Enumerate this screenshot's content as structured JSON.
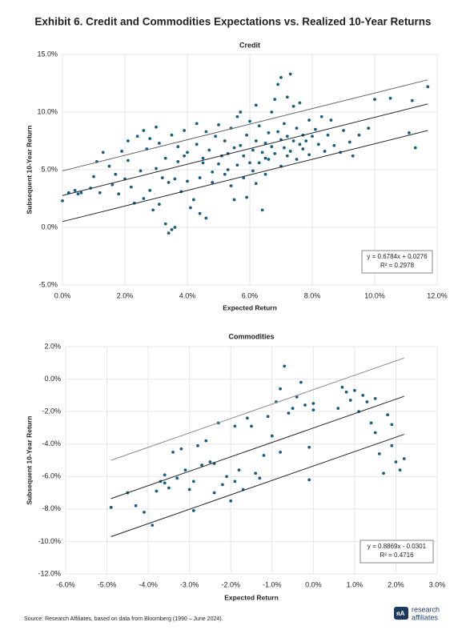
{
  "title": "Exhibit 6. Credit and Commodities Expectations vs. Realized 10-Year Returns",
  "source": "Source: Research Affiliates, based on data from Bloomberg (1990 – June 2024).",
  "logo": {
    "line1": "research",
    "line2": "affiliates"
  },
  "chart_data": [
    {
      "type": "scatter",
      "title": "Credit",
      "x_label": "Expected Return",
      "y_label": "Subsequent 10-Year Return",
      "color": "#1b5e7e",
      "grid": true,
      "xlim": [
        0,
        12
      ],
      "ylim": [
        -5,
        15
      ],
      "xticks": [
        {
          "value": 0,
          "label": "0.0%"
        },
        {
          "value": 2,
          "label": "2.0%"
        },
        {
          "value": 4,
          "label": "4.0%"
        },
        {
          "value": 6,
          "label": "6.0%"
        },
        {
          "value": 8,
          "label": "8.0%"
        },
        {
          "value": 10,
          "label": "10.0%"
        },
        {
          "value": 12,
          "label": "12.0%"
        }
      ],
      "yticks": [
        {
          "value": -5,
          "label": "-5.0%"
        },
        {
          "value": 0,
          "label": "0.0%"
        },
        {
          "value": 5,
          "label": "5.0%"
        },
        {
          "value": 10,
          "label": "10.0%"
        },
        {
          "value": 15,
          "label": "15.0%"
        }
      ],
      "x": [
        0.0,
        0.2,
        0.4,
        0.5,
        0.6,
        0.9,
        1.0,
        1.1,
        1.2,
        1.3,
        1.5,
        1.6,
        1.7,
        1.8,
        1.9,
        2.0,
        2.1,
        2.1,
        2.2,
        2.3,
        2.4,
        2.5,
        2.6,
        2.6,
        2.7,
        2.8,
        2.8,
        2.9,
        3.0,
        3.0,
        3.1,
        3.1,
        3.2,
        3.3,
        3.3,
        3.4,
        3.4,
        3.5,
        3.5,
        3.6,
        3.6,
        3.7,
        3.7,
        3.8,
        3.9,
        4.0,
        4.0,
        4.1,
        4.2,
        4.3,
        4.3,
        4.4,
        4.4,
        4.5,
        4.6,
        4.6,
        4.7,
        4.8,
        4.8,
        4.9,
        5.0,
        5.0,
        5.1,
        5.2,
        5.2,
        5.3,
        5.4,
        5.4,
        5.5,
        5.5,
        5.6,
        5.6,
        5.7,
        5.8,
        5.8,
        5.9,
        5.9,
        6.0,
        6.0,
        6.1,
        6.1,
        6.2,
        6.2,
        6.3,
        6.3,
        6.4,
        6.4,
        6.5,
        6.5,
        6.6,
        6.6,
        6.7,
        6.7,
        6.8,
        6.8,
        6.9,
        6.9,
        7.0,
        7.0,
        7.0,
        7.1,
        7.1,
        7.2,
        7.2,
        7.3,
        7.3,
        7.4,
        7.4,
        7.5,
        7.5,
        7.6,
        7.6,
        7.7,
        7.7,
        7.8,
        7.9,
        7.9,
        8.0,
        8.1,
        8.2,
        8.3,
        8.4,
        8.5,
        8.6,
        8.7,
        8.9,
        9.0,
        9.2,
        9.3,
        9.5,
        9.8,
        10.0,
        10.5,
        11.1,
        11.2,
        11.3,
        11.7,
        6.2,
        5.7,
        4.5,
        3.9,
        6.5,
        7.2,
        5.3
      ],
      "y": [
        2.3,
        3.0,
        3.2,
        2.9,
        3.0,
        3.4,
        4.4,
        5.7,
        3.0,
        6.5,
        5.3,
        3.7,
        4.6,
        2.9,
        6.6,
        4.2,
        5.8,
        7.5,
        3.5,
        2.1,
        7.9,
        4.9,
        8.4,
        2.5,
        6.8,
        7.7,
        3.2,
        1.5,
        5.1,
        8.7,
        7.3,
        2.0,
        4.3,
        6.0,
        0.3,
        -0.5,
        3.9,
        -0.2,
        8.0,
        0.0,
        4.2,
        5.7,
        7.0,
        3.1,
        8.4,
        6.5,
        4.0,
        1.7,
        2.4,
        9.0,
        7.2,
        4.3,
        1.2,
        5.6,
        0.8,
        8.3,
        6.7,
        4.8,
        3.9,
        7.9,
        5.5,
        8.9,
        6.2,
        4.6,
        7.5,
        5.0,
        8.6,
        3.6,
        6.9,
        2.4,
        5.4,
        9.6,
        7.1,
        4.3,
        6.2,
        2.6,
        8.0,
        5.6,
        9.2,
        6.7,
        4.9,
        7.5,
        3.8,
        8.8,
        5.6,
        6.5,
        1.5,
        7.3,
        4.6,
        8.2,
        5.9,
        10.0,
        7.0,
        11.1,
        6.4,
        12.4,
        8.3,
        13.0,
        7.6,
        5.3,
        9.0,
        6.9,
        11.3,
        7.9,
        13.3,
        6.6,
        10.5,
        7.5,
        8.6,
        5.9,
        7.2,
        10.8,
        8.0,
        6.8,
        7.5,
        9.3,
        6.3,
        7.9,
        8.5,
        7.2,
        9.6,
        6.6,
        8.0,
        9.3,
        7.1,
        6.5,
        8.4,
        7.4,
        6.2,
        8.0,
        8.6,
        11.1,
        11.2,
        8.2,
        11.0,
        6.9,
        12.2,
        10.6,
        10.0,
        6.0,
        6.2,
        6.0,
        6.2,
        6.4
      ],
      "lines": [
        {
          "color": "#666666",
          "x": [
            0,
            11.7
          ],
          "y": [
            4.9,
            12.8
          ]
        },
        {
          "color": "#222222",
          "x": [
            0,
            11.7
          ],
          "y": [
            2.76,
            10.7
          ]
        },
        {
          "color": "#222222",
          "x": [
            0,
            11.7
          ],
          "y": [
            0.5,
            8.4
          ]
        }
      ],
      "annotations": [
        "y = 0.6784x + 0.0276",
        "R² = 0.2978"
      ]
    },
    {
      "type": "scatter",
      "title": "Commodities",
      "x_label": "Expected Return",
      "y_label": "Subsequent 10-Year Return",
      "color": "#1b5e7e",
      "grid": true,
      "xlim": [
        -6,
        3
      ],
      "ylim": [
        -12,
        2
      ],
      "xticks": [
        {
          "value": -6,
          "label": "-6.0%"
        },
        {
          "value": -5,
          "label": "-5.0%"
        },
        {
          "value": -4,
          "label": "-4.0%"
        },
        {
          "value": -3,
          "label": "-3.0%"
        },
        {
          "value": -2,
          "label": "-2.0%"
        },
        {
          "value": -1,
          "label": "-1.0%"
        },
        {
          "value": 0,
          "label": "0.0%"
        },
        {
          "value": 1,
          "label": "1.0%"
        },
        {
          "value": 2,
          "label": "2.0%"
        },
        {
          "value": 3,
          "label": "3.0%"
        }
      ],
      "yticks": [
        {
          "value": 2,
          "label": "2.0%"
        },
        {
          "value": 0,
          "label": "0.0%"
        },
        {
          "value": -2,
          "label": "-2.0%"
        },
        {
          "value": -4,
          "label": "-4.0%"
        },
        {
          "value": -6,
          "label": "-6.0%"
        },
        {
          "value": -8,
          "label": "-8.0%"
        },
        {
          "value": -10,
          "label": "-10.0%"
        },
        {
          "value": -12,
          "label": "-12.0%"
        }
      ],
      "x": [
        -4.9,
        -4.5,
        -4.3,
        -4.1,
        -3.9,
        -3.8,
        -3.7,
        -3.6,
        -3.5,
        -3.4,
        -3.3,
        -3.2,
        -3.1,
        -3.0,
        -2.9,
        -2.9,
        -2.8,
        -2.7,
        -2.6,
        -2.5,
        -2.4,
        -2.3,
        -2.2,
        -2.1,
        -2.0,
        -1.9,
        -1.8,
        -1.7,
        -1.6,
        -1.5,
        -1.4,
        -1.3,
        -1.2,
        -1.1,
        -1.0,
        -0.9,
        -0.8,
        -0.8,
        -0.7,
        -0.6,
        -0.5,
        -0.4,
        -0.3,
        -0.2,
        -0.1,
        -0.1,
        0.0,
        0.0,
        0.6,
        0.7,
        0.8,
        0.9,
        1.0,
        1.1,
        1.2,
        1.3,
        1.4,
        1.5,
        1.5,
        1.6,
        1.7,
        1.8,
        1.9,
        1.9,
        2.0,
        2.1,
        2.2,
        -1.9,
        -2.4,
        -3.6
      ],
      "y": [
        -7.9,
        -7.0,
        -7.8,
        -8.2,
        -9.0,
        -6.9,
        -6.3,
        -5.9,
        -6.7,
        -4.5,
        -6.1,
        -4.3,
        -5.6,
        -6.8,
        -8.1,
        -6.3,
        -4.1,
        -5.3,
        -3.8,
        -5.1,
        -7.0,
        -2.7,
        -6.5,
        -6.0,
        -7.5,
        -6.3,
        -5.6,
        -6.8,
        -2.4,
        -2.9,
        -5.8,
        -6.1,
        -4.7,
        -2.3,
        -3.5,
        -1.4,
        -0.6,
        -4.5,
        0.8,
        -2.1,
        -1.8,
        -1.1,
        -0.2,
        -1.6,
        -4.2,
        -6.2,
        -1.5,
        -1.9,
        -1.8,
        -0.5,
        -0.8,
        -1.3,
        -0.7,
        -2.0,
        -1.0,
        -1.4,
        -2.7,
        -1.2,
        -3.3,
        -4.6,
        -5.8,
        -2.2,
        -4.1,
        -2.8,
        -5.1,
        -5.6,
        -4.9,
        -2.9,
        -5.2,
        -6.4
      ],
      "lines": [
        {
          "color": "#888888",
          "x": [
            -4.9,
            2.2
          ],
          "y": [
            -5.0,
            1.3
          ]
        },
        {
          "color": "#222222",
          "x": [
            -4.9,
            2.2
          ],
          "y": [
            -7.36,
            -1.06
          ]
        },
        {
          "color": "#222222",
          "x": [
            -4.9,
            2.2
          ],
          "y": [
            -9.7,
            -3.4
          ]
        }
      ],
      "annotations": [
        "y = 0.8869x - 0.0301",
        "R² = 0.4716"
      ]
    }
  ]
}
